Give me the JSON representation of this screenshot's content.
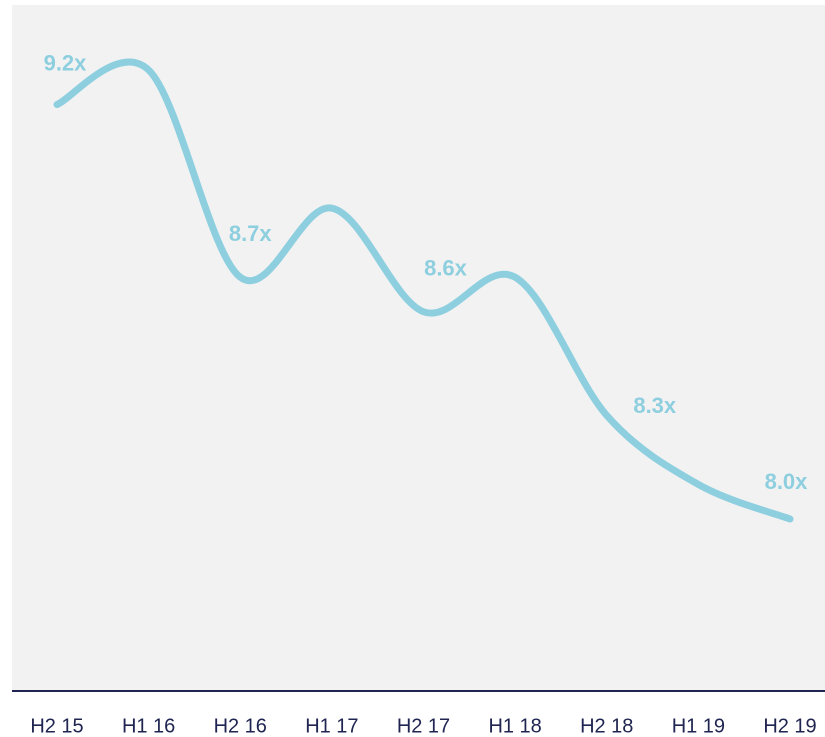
{
  "chart_data": {
    "type": "line",
    "categories": [
      "H2 15",
      "H1 16",
      "H2 16",
      "H1 17",
      "H2 17",
      "H1 18",
      "H2 18",
      "H1 19",
      "H2 19"
    ],
    "series": [
      {
        "color": "#8ecfdf",
        "values": [
          9.2,
          9.3,
          8.7,
          8.9,
          8.6,
          8.7,
          8.3,
          8.1,
          8.0
        ],
        "value_labels": [
          "9.2x",
          null,
          "8.7x",
          null,
          "8.6x",
          null,
          "8.3x",
          null,
          "8.0x"
        ]
      }
    ]
  }
}
